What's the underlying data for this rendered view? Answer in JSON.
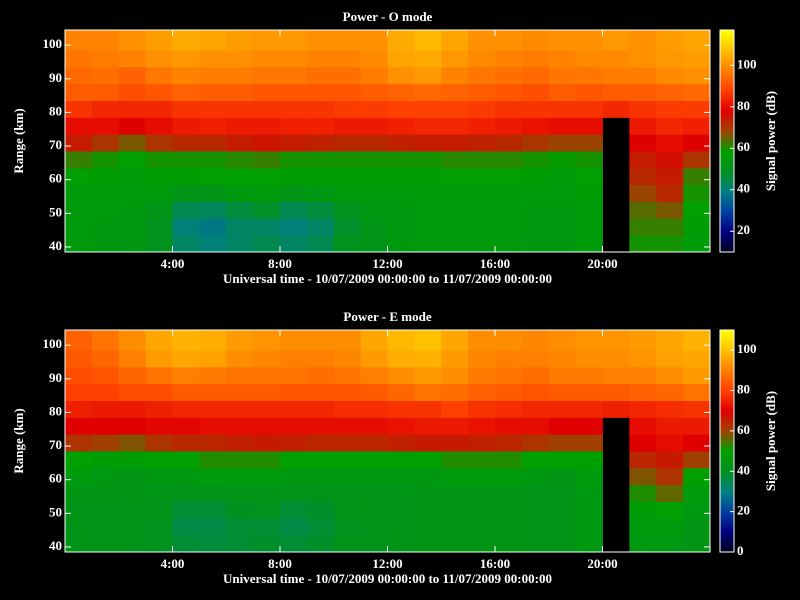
{
  "chart_data": [
    {
      "type": "heatmap",
      "title": "Power - O mode",
      "xlabel": "Universal time - 10/07/2009 00:00:00 to 11/07/2009 00:00:00",
      "ylabel": "Range (km)",
      "colorbar_label": "Signal power (dB)",
      "xlim": [
        0,
        24
      ],
      "ylim": [
        38.5,
        104.5
      ],
      "xticks": [
        {
          "value": 4,
          "label": "4:00"
        },
        {
          "value": 8,
          "label": "8:00"
        },
        {
          "value": 12,
          "label": "12:00"
        },
        {
          "value": 16,
          "label": "16:00"
        },
        {
          "value": 20,
          "label": "20:00"
        }
      ],
      "yticks": [
        40,
        50,
        60,
        70,
        80,
        90,
        100
      ],
      "clim": [
        10,
        117
      ],
      "cticks": [
        20,
        40,
        60,
        80,
        100
      ],
      "colorscale": [
        "#000020",
        "#000080",
        "#0040a0",
        "#008080",
        "#009020",
        "#00a000",
        "#a04000",
        "#e00000",
        "#ff4000",
        "#ff8000",
        "#ffc000",
        "#ffff00"
      ],
      "x_bins": [
        0,
        1,
        2,
        3,
        4,
        5,
        6,
        7,
        8,
        9,
        10,
        11,
        12,
        13,
        14,
        15,
        16,
        17,
        18,
        19,
        20,
        21,
        22,
        23,
        24
      ],
      "y_bins": [
        38.5,
        43.5,
        48.5,
        53.5,
        58.5,
        63.5,
        68.5,
        73.5,
        78.5,
        83.5,
        88.5,
        93.5,
        98.5,
        104.5
      ],
      "z": [
        [
          55,
          54,
          53,
          50,
          42,
          40,
          42,
          44,
          42,
          44,
          50,
          52,
          54,
          55,
          55,
          55,
          55,
          54,
          54,
          56,
          null,
          60,
          60,
          56
        ],
        [
          55,
          54,
          53,
          50,
          40,
          38,
          42,
          42,
          40,
          42,
          48,
          52,
          54,
          55,
          55,
          55,
          55,
          54,
          54,
          56,
          null,
          62,
          62,
          57
        ],
        [
          55,
          55,
          54,
          52,
          44,
          43,
          46,
          48,
          44,
          46,
          50,
          53,
          54,
          55,
          55,
          55,
          55,
          54,
          54,
          56,
          null,
          64,
          66,
          58
        ],
        [
          56,
          56,
          55,
          55,
          52,
          52,
          54,
          55,
          52,
          53,
          55,
          55,
          55,
          56,
          56,
          56,
          56,
          55,
          55,
          57,
          null,
          68,
          72,
          60
        ],
        [
          58,
          57,
          56,
          57,
          57,
          58,
          58,
          58,
          57,
          57,
          57,
          57,
          57,
          57,
          58,
          58,
          58,
          57,
          56,
          58,
          null,
          72,
          74,
          62
        ],
        [
          62,
          60,
          58,
          60,
          60,
          60,
          61,
          62,
          60,
          60,
          60,
          60,
          60,
          60,
          61,
          61,
          61,
          60,
          59,
          60,
          null,
          74,
          76,
          70
        ],
        [
          74,
          70,
          66,
          70,
          72,
          72,
          74,
          75,
          74,
          73,
          72,
          72,
          73,
          74,
          74,
          73,
          72,
          70,
          68,
          68,
          null,
          78,
          80,
          78
        ],
        [
          80,
          80,
          78,
          80,
          82,
          83,
          82,
          82,
          83,
          83,
          82,
          82,
          83,
          84,
          84,
          83,
          82,
          81,
          80,
          80,
          null,
          82,
          84,
          83
        ],
        [
          86,
          84,
          84,
          84,
          86,
          86,
          86,
          86,
          86,
          86,
          87,
          87,
          88,
          88,
          88,
          87,
          86,
          86,
          86,
          86,
          84,
          86,
          87,
          87
        ],
        [
          92,
          92,
          90,
          91,
          93,
          92,
          92,
          91,
          91,
          91,
          91,
          92,
          93,
          94,
          93,
          92,
          91,
          90,
          92,
          91,
          92,
          92,
          93,
          94
        ],
        [
          94,
          95,
          93,
          96,
          98,
          97,
          97,
          96,
          96,
          95,
          95,
          97,
          100,
          101,
          98,
          96,
          95,
          94,
          96,
          96,
          97,
          97,
          99,
          100
        ],
        [
          96,
          97,
          98,
          100,
          101,
          100,
          100,
          99,
          99,
          98,
          98,
          99,
          103,
          104,
          101,
          99,
          98,
          97,
          98,
          99,
          99,
          100,
          101,
          102
        ],
        [
          98,
          98,
          100,
          102,
          104,
          103,
          102,
          101,
          101,
          100,
          100,
          100,
          104,
          106,
          103,
          100,
          100,
          99,
          100,
          100,
          101,
          100,
          102,
          103
        ]
      ]
    },
    {
      "type": "heatmap",
      "title": "Power - E mode",
      "xlabel": "Universal time - 10/07/2009 00:00:00 to 11/07/2009 00:00:00",
      "ylabel": "Range (km)",
      "colorbar_label": "Signal power (dB)",
      "xlim": [
        0,
        24
      ],
      "ylim": [
        38.5,
        104.5
      ],
      "xticks": [
        {
          "value": 4,
          "label": "4:00"
        },
        {
          "value": 8,
          "label": "8:00"
        },
        {
          "value": 12,
          "label": "12:00"
        },
        {
          "value": 16,
          "label": "16:00"
        },
        {
          "value": 20,
          "label": "20:00"
        }
      ],
      "yticks": [
        40,
        50,
        60,
        70,
        80,
        90,
        100
      ],
      "clim": [
        0,
        110
      ],
      "cticks": [
        0,
        20,
        40,
        60,
        80,
        100
      ],
      "colorscale": [
        "#000020",
        "#000080",
        "#0040a0",
        "#008080",
        "#009020",
        "#00a000",
        "#a04000",
        "#e00000",
        "#ff4000",
        "#ff8000",
        "#ffc000",
        "#ffff00"
      ],
      "x_bins": [
        0,
        1,
        2,
        3,
        4,
        5,
        6,
        7,
        8,
        9,
        10,
        11,
        12,
        13,
        14,
        15,
        16,
        17,
        18,
        19,
        20,
        21,
        22,
        23,
        24
      ],
      "y_bins": [
        38.5,
        43.5,
        48.5,
        53.5,
        58.5,
        63.5,
        68.5,
        73.5,
        78.5,
        83.5,
        88.5,
        93.5,
        98.5,
        104.5
      ],
      "z": [
        [
          43,
          43,
          42,
          41,
          38,
          37,
          38,
          39,
          38,
          39,
          42,
          42,
          43,
          44,
          44,
          44,
          44,
          43,
          43,
          45,
          null,
          45,
          45,
          44
        ],
        [
          43,
          43,
          42,
          41,
          36,
          36,
          38,
          38,
          36,
          38,
          41,
          42,
          43,
          44,
          44,
          44,
          44,
          43,
          43,
          45,
          null,
          46,
          46,
          44
        ],
        [
          43,
          43,
          42,
          42,
          38,
          38,
          40,
          41,
          38,
          39,
          42,
          43,
          43,
          44,
          44,
          44,
          44,
          43,
          43,
          45,
          null,
          48,
          50,
          45
        ],
        [
          44,
          44,
          44,
          43,
          42,
          42,
          43,
          43,
          42,
          42,
          43,
          43,
          43,
          44,
          44,
          44,
          44,
          43,
          43,
          45,
          null,
          52,
          56,
          46
        ],
        [
          46,
          45,
          44,
          45,
          45,
          46,
          46,
          46,
          45,
          45,
          45,
          45,
          45,
          45,
          46,
          46,
          46,
          45,
          44,
          46,
          null,
          58,
          62,
          50
        ],
        [
          50,
          48,
          48,
          50,
          50,
          52,
          52,
          52,
          50,
          50,
          50,
          50,
          50,
          50,
          52,
          52,
          52,
          50,
          50,
          50,
          null,
          64,
          66,
          60
        ],
        [
          62,
          60,
          58,
          62,
          64,
          64,
          65,
          66,
          65,
          64,
          64,
          64,
          65,
          66,
          66,
          65,
          64,
          62,
          60,
          60,
          null,
          70,
          72,
          70
        ],
        [
          70,
          70,
          70,
          71,
          71,
          72,
          72,
          72,
          72,
          72,
          72,
          72,
          73,
          74,
          74,
          73,
          72,
          72,
          70,
          70,
          null,
          72,
          74,
          74
        ],
        [
          75,
          74,
          74,
          75,
          76,
          76,
          76,
          76,
          76,
          76,
          77,
          77,
          78,
          78,
          80,
          78,
          77,
          76,
          76,
          76,
          75,
          76,
          77,
          78
        ],
        [
          80,
          80,
          82,
          82,
          84,
          84,
          84,
          84,
          83,
          83,
          83,
          84,
          86,
          88,
          87,
          85,
          84,
          83,
          84,
          84,
          84,
          85,
          86,
          88
        ],
        [
          82,
          83,
          86,
          88,
          90,
          89,
          88,
          88,
          88,
          87,
          88,
          90,
          92,
          94,
          92,
          89,
          88,
          87,
          89,
          89,
          90,
          90,
          92,
          94
        ],
        [
          84,
          86,
          90,
          94,
          96,
          95,
          92,
          91,
          90,
          90,
          91,
          94,
          97,
          98,
          94,
          91,
          90,
          90,
          91,
          92,
          92,
          93,
          95,
          96
        ],
        [
          85,
          88,
          92,
          96,
          98,
          97,
          94,
          93,
          92,
          92,
          92,
          96,
          99,
          100,
          96,
          92,
          92,
          91,
          92,
          93,
          93,
          94,
          96,
          98
        ]
      ]
    }
  ]
}
